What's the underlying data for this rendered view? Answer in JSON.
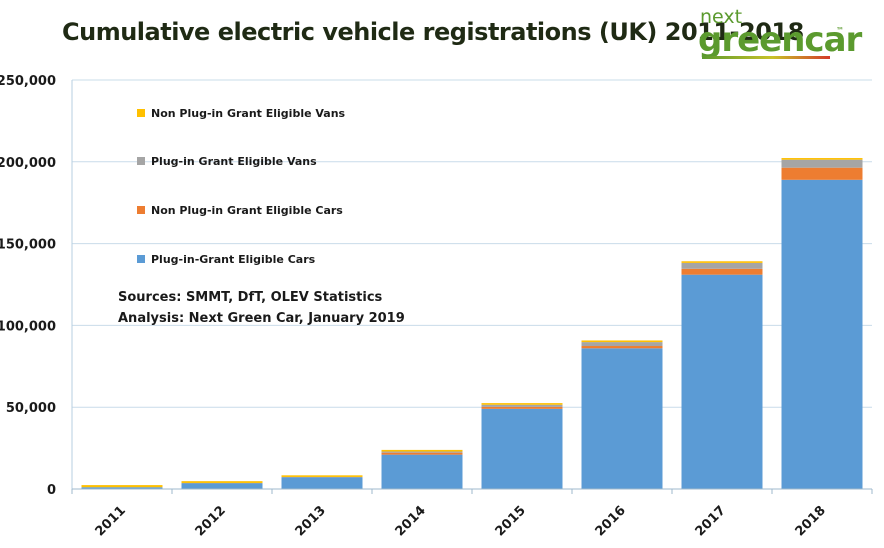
{
  "title": "Cumulative electric vehicle registrations (UK) 2011-2018",
  "logo": {
    "top": "next",
    "main": "greencar",
    "tm": "™"
  },
  "sources": [
    "Sources: SMMT, DfT, OLEV Statistics",
    "Analysis: Next Green Car, January 2019"
  ],
  "chart_data": {
    "type": "bar",
    "stacked": true,
    "categories": [
      "2011",
      "2012",
      "2013",
      "2014",
      "2015",
      "2016",
      "2017",
      "2018"
    ],
    "series": [
      {
        "name": "Plug-in-Grant Eligible Cars",
        "color": "#5b9bd5",
        "values": [
          1082,
          3586,
          7062,
          21000,
          49000,
          86000,
          131000,
          189000
        ]
      },
      {
        "name": "Non Plug-in Grant Eligible Cars",
        "color": "#ed7d31",
        "values": [
          0,
          0,
          0,
          1200,
          1200,
          1400,
          3600,
          7400
        ]
      },
      {
        "name": "Plug-in Grant Eligible Vans",
        "color": "#a5a5a5",
        "values": [
          0,
          100,
          300,
          700,
          1300,
          2400,
          3600,
          4900
        ]
      },
      {
        "name": "Non Plug-in Grant Eligible Vans",
        "color": "#ffc000",
        "values": [
          1300,
          1100,
          1000,
          1000,
          1000,
          1000,
          1000,
          1000
        ]
      }
    ],
    "ylim": [
      0,
      250000
    ],
    "yticks": [
      "0",
      "50,000",
      "100,000",
      "150,000",
      "200,000",
      "250,000"
    ],
    "ytick_values": [
      0,
      50000,
      100000,
      150000,
      200000,
      250000
    ],
    "grid": true,
    "legend_placement": "top-left, reversed order"
  }
}
